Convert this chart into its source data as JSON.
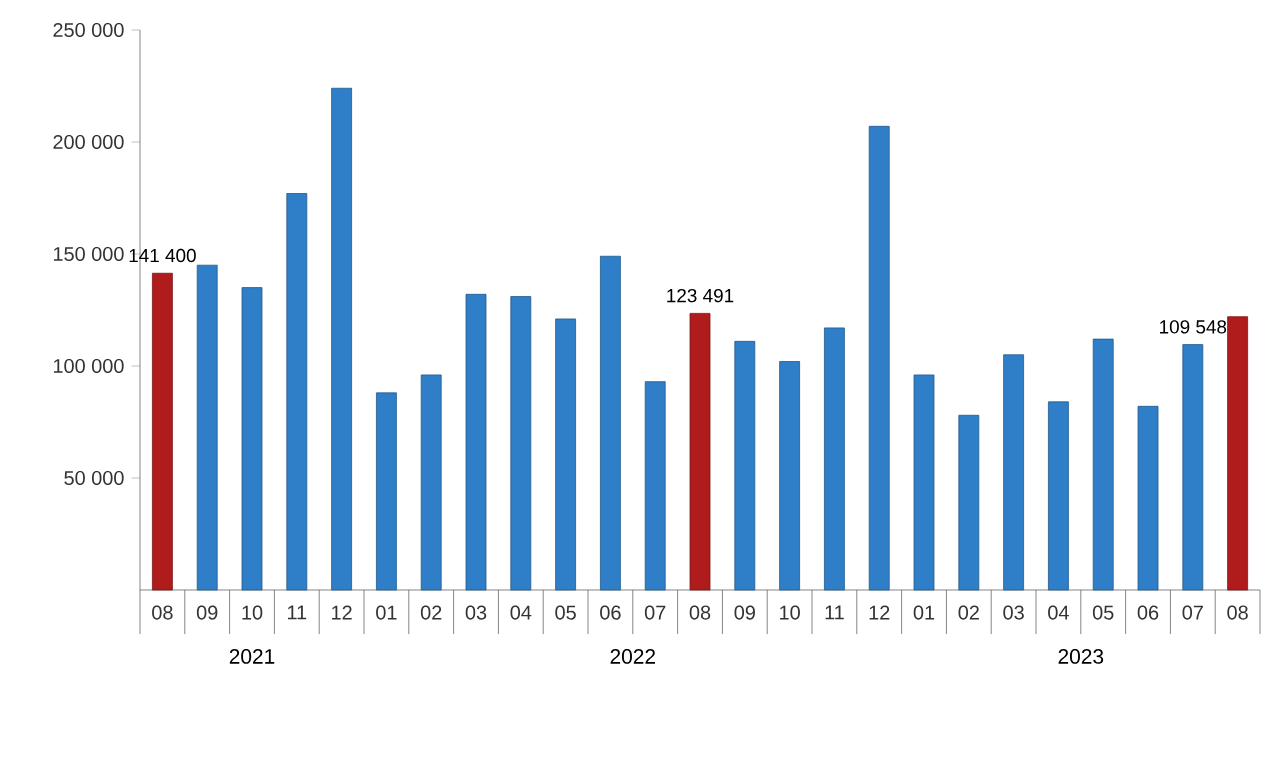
{
  "chart_data": {
    "type": "bar",
    "categories": [
      "08",
      "09",
      "10",
      "11",
      "12",
      "01",
      "02",
      "03",
      "04",
      "05",
      "06",
      "07",
      "08",
      "09",
      "10",
      "11",
      "12",
      "01",
      "02",
      "03",
      "04",
      "05",
      "06",
      "07",
      "08"
    ],
    "values": [
      141400,
      145000,
      135000,
      177000,
      224000,
      88000,
      96000,
      132000,
      131000,
      121000,
      149000,
      93000,
      123491,
      111000,
      102000,
      117000,
      207000,
      96000,
      78000,
      105000,
      84000,
      112000,
      82000,
      109548,
      122000
    ],
    "colors": [
      "#b01c1c",
      "#2e7fc8",
      "#2e7fc8",
      "#2e7fc8",
      "#2e7fc8",
      "#2e7fc8",
      "#2e7fc8",
      "#2e7fc8",
      "#2e7fc8",
      "#2e7fc8",
      "#2e7fc8",
      "#2e7fc8",
      "#b01c1c",
      "#2e7fc8",
      "#2e7fc8",
      "#2e7fc8",
      "#2e7fc8",
      "#2e7fc8",
      "#2e7fc8",
      "#2e7fc8",
      "#2e7fc8",
      "#2e7fc8",
      "#2e7fc8",
      "#2e7fc8",
      "#b01c1c"
    ],
    "value_labels": [
      "141 400",
      null,
      null,
      null,
      null,
      null,
      null,
      null,
      null,
      null,
      null,
      null,
      "123 491",
      null,
      null,
      null,
      null,
      null,
      null,
      null,
      null,
      null,
      null,
      "109 548",
      null
    ],
    "ylim": [
      0,
      250000
    ],
    "yticks": [
      {
        "value": 50000,
        "label": "50 000"
      },
      {
        "value": 100000,
        "label": "100 000"
      },
      {
        "value": 150000,
        "label": "150 000"
      },
      {
        "value": 200000,
        "label": "200 000"
      },
      {
        "value": 250000,
        "label": "250 000"
      }
    ],
    "annotations": [
      "2021",
      "2022",
      "2023"
    ],
    "grid": false
  }
}
